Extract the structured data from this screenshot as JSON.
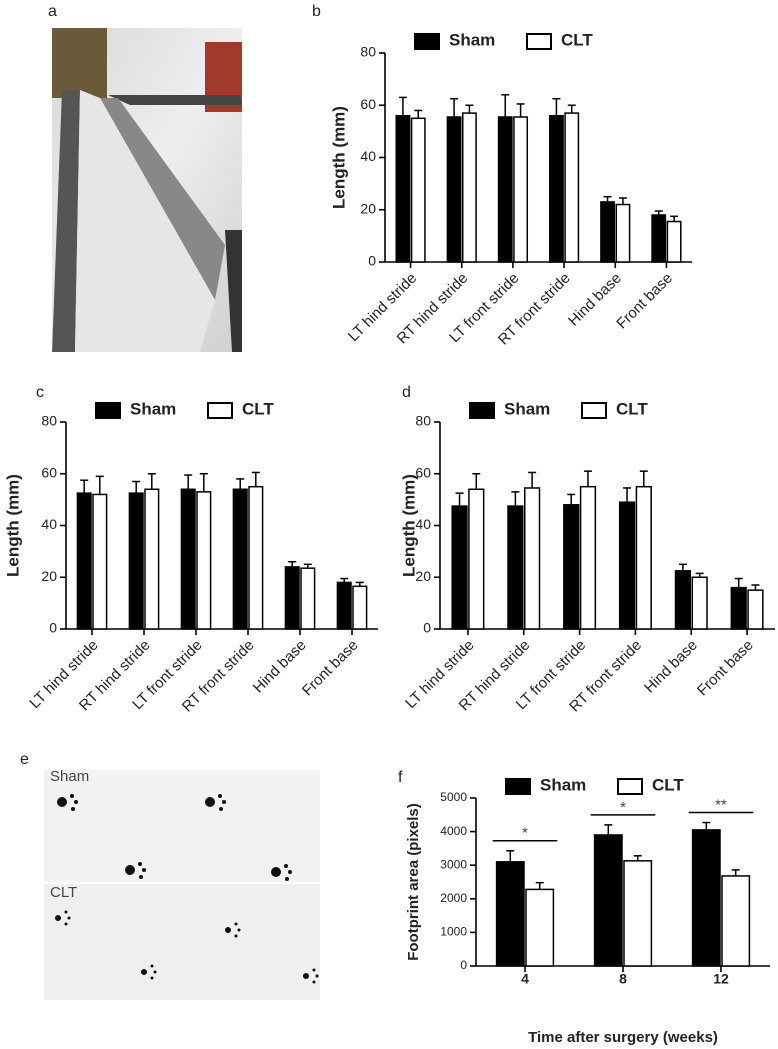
{
  "photo_panels": [
    {
      "label": "a"
    },
    {
      "label": "e",
      "captions": [
        "Sham",
        "CLT"
      ]
    }
  ],
  "chart_data": [
    {
      "panel": "b",
      "type": "bar",
      "ylabel": "Length (mm)",
      "legend": "top",
      "categories": [
        "LT hind stride",
        "RT hind stride",
        "LT front stride",
        "RT front stride",
        "Hind base",
        "Front base"
      ],
      "series": [
        {
          "name": "Sham",
          "color": "#000000",
          "values": [
            56,
            55.5,
            55.5,
            56,
            23,
            18
          ],
          "errors": [
            7,
            7,
            8.5,
            6.5,
            2,
            1.5
          ]
        },
        {
          "name": "CLT",
          "color": "#ffffff",
          "values": [
            55,
            57,
            55.5,
            57,
            22,
            15.5
          ],
          "errors": [
            3,
            3,
            5,
            3,
            2.5,
            2
          ]
        }
      ],
      "ylim": [
        0,
        80
      ],
      "yticks": [
        0,
        20,
        40,
        60,
        80
      ]
    },
    {
      "panel": "c",
      "type": "bar",
      "ylabel": "Length (mm)",
      "legend": "top",
      "categories": [
        "LT hind stride",
        "RT hind stride",
        "LT front stride",
        "RT front stride",
        "Hind base",
        "Front base"
      ],
      "series": [
        {
          "name": "Sham",
          "color": "#000000",
          "values": [
            52.5,
            52.5,
            54,
            54,
            24,
            18
          ],
          "errors": [
            5,
            4.5,
            5.5,
            4,
            2,
            1.5
          ]
        },
        {
          "name": "CLT",
          "color": "#ffffff",
          "values": [
            52,
            54,
            53,
            55,
            23.5,
            16.5
          ],
          "errors": [
            7,
            6,
            7,
            5.5,
            1.5,
            1.5
          ]
        }
      ],
      "ylim": [
        0,
        80
      ],
      "yticks": [
        0,
        20,
        40,
        60,
        80
      ]
    },
    {
      "panel": "d",
      "type": "bar",
      "ylabel": "Length (mm)",
      "legend": "top",
      "categories": [
        "LT hind stride",
        "RT hind stride",
        "LT front stride",
        "RT front stride",
        "Hind base",
        "Front base"
      ],
      "series": [
        {
          "name": "Sham",
          "color": "#000000",
          "values": [
            47.5,
            47.5,
            48,
            49,
            22.5,
            16
          ],
          "errors": [
            5,
            5.5,
            4,
            5.5,
            2.5,
            3.5
          ]
        },
        {
          "name": "CLT",
          "color": "#ffffff",
          "values": [
            54,
            54.5,
            55,
            55,
            20,
            15
          ],
          "errors": [
            6,
            6,
            6,
            6,
            1.5,
            2
          ]
        }
      ],
      "ylim": [
        0,
        80
      ],
      "yticks": [
        0,
        20,
        40,
        60,
        80
      ]
    },
    {
      "panel": "f",
      "type": "bar",
      "ylabel": "Footprint area (pixels)",
      "xlabel": "Time after surgery (weeks)",
      "legend": "top",
      "categories": [
        "4",
        "8",
        "12"
      ],
      "series": [
        {
          "name": "Sham",
          "color": "#000000",
          "values": [
            3100,
            3900,
            4050
          ],
          "errors": [
            330,
            300,
            220
          ]
        },
        {
          "name": "CLT",
          "color": "#ffffff",
          "values": [
            2280,
            3130,
            2680
          ],
          "errors": [
            200,
            150,
            180
          ]
        }
      ],
      "annotations": [
        "*",
        "*",
        "**"
      ],
      "ylim": [
        0,
        5000
      ],
      "yticks": [
        0,
        1000,
        2000,
        3000,
        4000,
        5000
      ]
    }
  ]
}
